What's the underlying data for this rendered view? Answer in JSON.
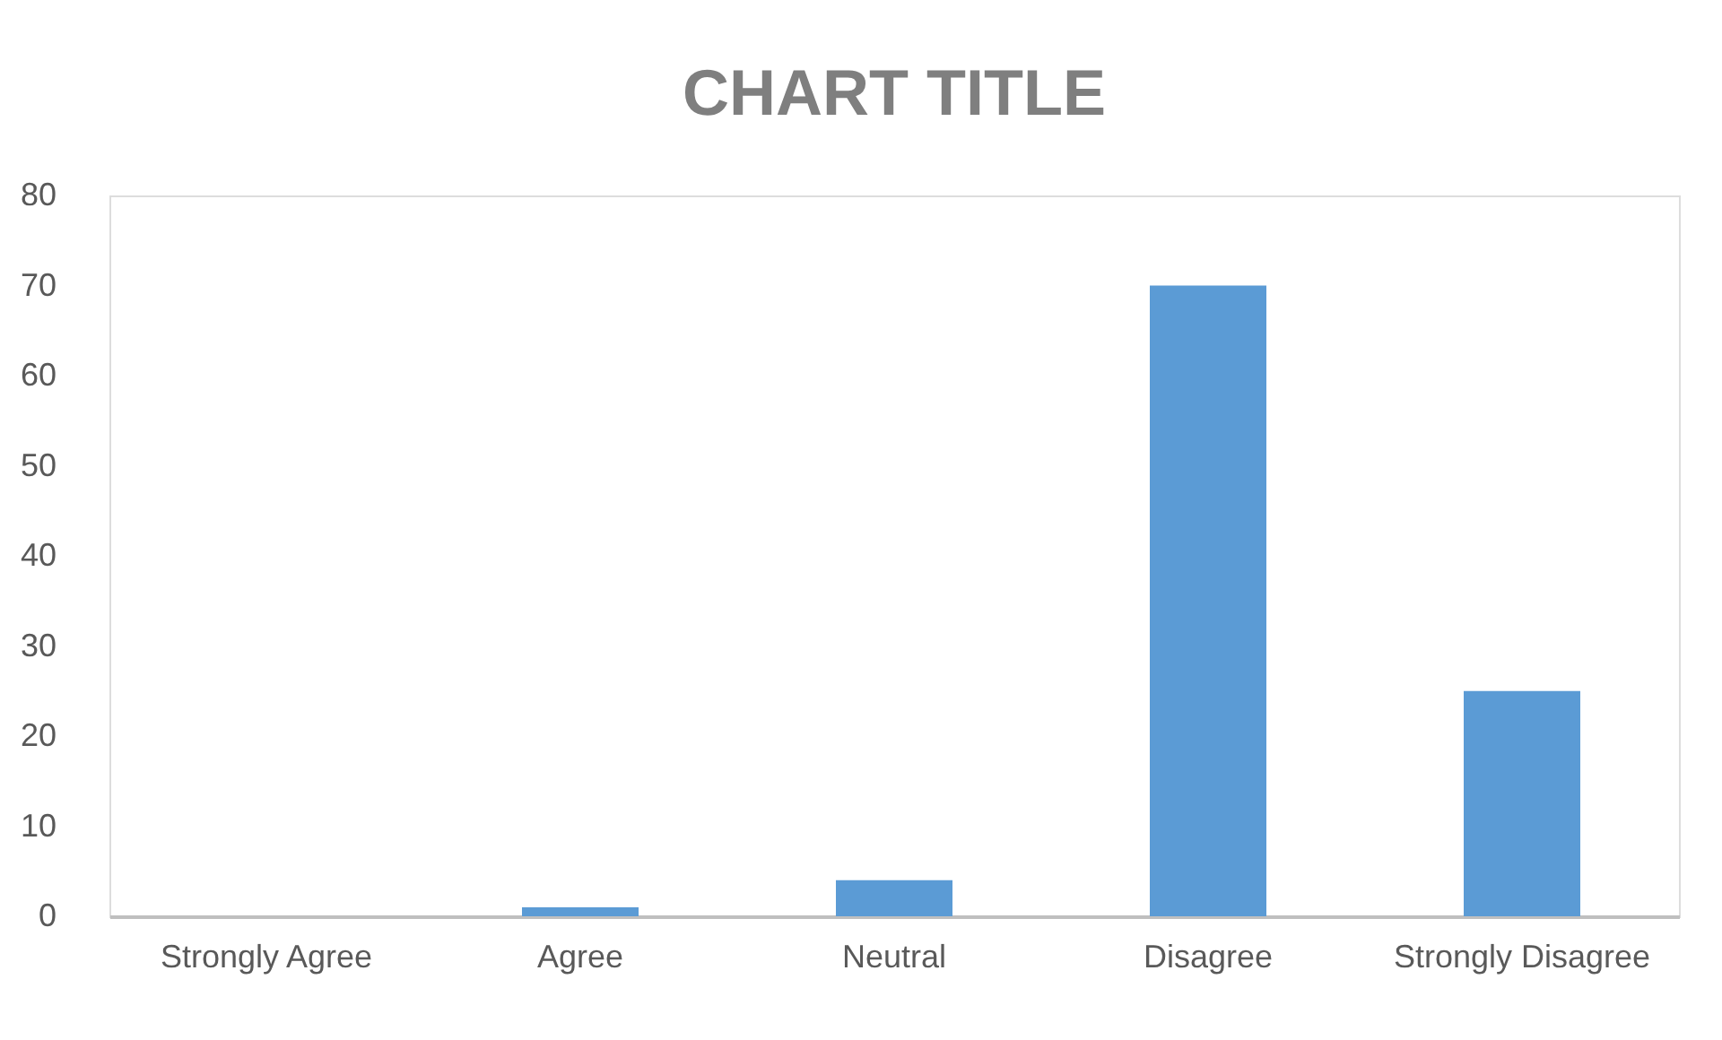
{
  "chart_data": {
    "type": "bar",
    "title": "CHART TITLE",
    "categories": [
      "Strongly Agree",
      "Agree",
      "Neutral",
      "Disagree",
      "Strongly Disagree"
    ],
    "values": [
      0,
      1,
      4,
      70,
      25
    ],
    "color": "#5b9bd5",
    "ylim": [
      0,
      80
    ],
    "yticks": [
      0,
      10,
      20,
      30,
      40,
      50,
      60,
      70,
      80
    ],
    "grid": false
  }
}
